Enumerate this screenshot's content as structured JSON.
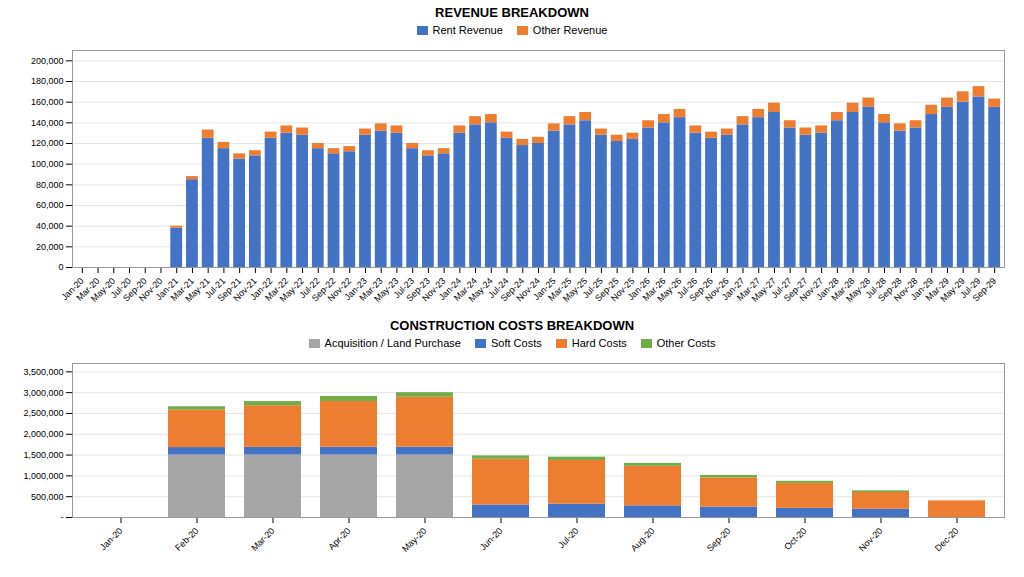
{
  "chart_data": [
    {
      "type": "bar",
      "title": "REVENUE BREAKDOWN",
      "stacked": true,
      "grid": true,
      "legend": "top",
      "categories": [
        "Jan-20",
        "Mar-20",
        "May-20",
        "Jul-20",
        "Sep-20",
        "Nov-20",
        "Jan-21",
        "Mar-21",
        "May-21",
        "Jul-21",
        "Sep-21",
        "Nov-21",
        "Jan-22",
        "Mar-22",
        "May-22",
        "Jul-22",
        "Sep-22",
        "Nov-22",
        "Jan-23",
        "Mar-23",
        "May-23",
        "Jul-23",
        "Sep-23",
        "Nov-23",
        "Jan-24",
        "Mar-24",
        "May-24",
        "Jul-24",
        "Sep-24",
        "Nov-24",
        "Jan-25",
        "Mar-25",
        "May-25",
        "Jul-25",
        "Sep-25",
        "Nov-25",
        "Jan-26",
        "Mar-26",
        "May-26",
        "Jul-26",
        "Sep-26",
        "Nov-26",
        "Jan-27",
        "Mar-27",
        "May-27",
        "Jul-27",
        "Sep-27",
        "Nov-27",
        "Jan-28",
        "Mar-28",
        "May-28",
        "Jul-28",
        "Sep-28",
        "Nov-28",
        "Jan-29",
        "Mar-29",
        "May-29",
        "Jul-29",
        "Sep-29"
      ],
      "series": [
        {
          "name": "Rent Revenue",
          "color": "#4472C4",
          "values": [
            0,
            0,
            0,
            0,
            0,
            0,
            38000,
            85000,
            125000,
            115000,
            105000,
            108000,
            125000,
            130000,
            128000,
            115000,
            110000,
            112000,
            128000,
            132000,
            130000,
            115000,
            108000,
            110000,
            130000,
            138000,
            140000,
            125000,
            118000,
            120000,
            132000,
            138000,
            142000,
            128000,
            122000,
            124000,
            135000,
            140000,
            145000,
            130000,
            125000,
            128000,
            138000,
            145000,
            150000,
            135000,
            128000,
            130000,
            142000,
            150000,
            155000,
            140000,
            132000,
            135000,
            148000,
            155000,
            160000,
            165000,
            155000
          ]
        },
        {
          "name": "Other Revenue",
          "color": "#ED7D31",
          "values": [
            0,
            0,
            0,
            0,
            0,
            0,
            2000,
            3000,
            8000,
            6000,
            5000,
            5000,
            6000,
            7000,
            7000,
            5000,
            5000,
            5000,
            6000,
            7000,
            7000,
            5000,
            5000,
            5000,
            7000,
            8000,
            8000,
            6000,
            6000,
            6000,
            7000,
            8000,
            8000,
            6000,
            6000,
            6000,
            7000,
            8000,
            8000,
            7000,
            6000,
            6000,
            8000,
            8000,
            9000,
            7000,
            7000,
            7000,
            8000,
            9000,
            9000,
            8000,
            7000,
            7000,
            9000,
            9000,
            10000,
            10000,
            8000
          ]
        }
      ],
      "ylim": [
        0,
        210000
      ],
      "yticks": [
        0,
        {
          "value": 20000,
          "label": "20,000"
        },
        {
          "value": 40000,
          "label": "40,000"
        },
        {
          "value": 60000,
          "label": "60,000"
        },
        {
          "value": 80000,
          "label": "80,000"
        },
        {
          "value": 100000,
          "label": "100,000"
        },
        {
          "value": 120000,
          "label": "120,000"
        },
        {
          "value": 140000,
          "label": "140,000"
        },
        {
          "value": 160000,
          "label": "160,000"
        },
        {
          "value": 180000,
          "label": "180,000"
        },
        {
          "value": 200000,
          "label": "200,000"
        }
      ]
    },
    {
      "type": "bar",
      "title": "CONSTRUCTION COSTS BREAKDOWN",
      "stacked": true,
      "grid": true,
      "legend": "top",
      "categories": [
        "Jan-20",
        "Feb-20",
        "Mar-20",
        "Apr-20",
        "May-20",
        "Jun-20",
        "Jul-20",
        "Aug-20",
        "Sep-20",
        "Oct-20",
        "Nov-20",
        "Dec-20"
      ],
      "series": [
        {
          "name": "Acquisition / Land Purchase",
          "color": "#A6A6A6",
          "values": [
            0,
            1500000,
            1500000,
            1500000,
            1500000,
            0,
            0,
            0,
            0,
            0,
            0,
            0
          ]
        },
        {
          "name": "Soft Costs",
          "color": "#4472C4",
          "values": [
            0,
            180000,
            185000,
            188000,
            190000,
            300000,
            320000,
            280000,
            250000,
            220000,
            200000,
            0
          ]
        },
        {
          "name": "Hard Costs",
          "color": "#ED7D31",
          "values": [
            0,
            900000,
            1000000,
            1100000,
            1200000,
            1100000,
            1050000,
            950000,
            700000,
            600000,
            400000,
            400000
          ]
        },
        {
          "name": "Other Costs",
          "color": "#70AD47",
          "values": [
            0,
            80000,
            100000,
            120000,
            110000,
            80000,
            80000,
            70000,
            60000,
            50000,
            40000,
            0
          ]
        }
      ],
      "ylim": [
        0,
        3700000
      ],
      "yticks": [
        {
          "value": 0,
          "label": "-"
        },
        {
          "value": 500000,
          "label": "500,000"
        },
        {
          "value": 1000000,
          "label": "1,000,000"
        },
        {
          "value": 1500000,
          "label": "1,500,000"
        },
        {
          "value": 2000000,
          "label": "2,000,000"
        },
        {
          "value": 2500000,
          "label": "2,500,000"
        },
        {
          "value": 3000000,
          "label": "3,000,000"
        },
        {
          "value": 3500000,
          "label": "3,500,000"
        }
      ]
    }
  ]
}
